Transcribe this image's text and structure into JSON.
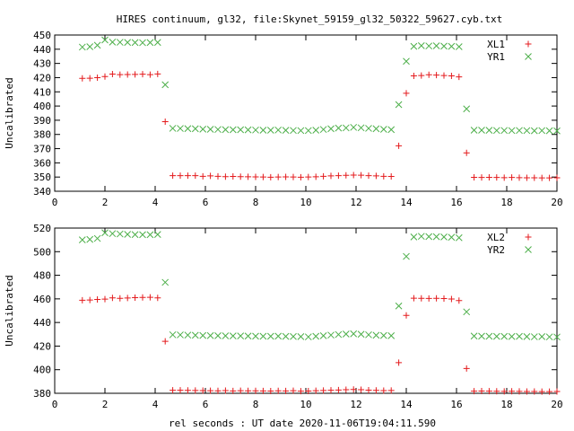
{
  "title": "HIRES continuum, gl32, file:Skynet_59159_gl32_50322_59627.cyb.txt",
  "xlabel": "rel seconds : UT date 2020-11-06T19:04:11.590",
  "chart_data": [
    {
      "type": "scatter",
      "ylabel": "Uncalibrated",
      "xlim": [
        0,
        20
      ],
      "ylim": [
        340,
        450
      ],
      "xticks": [
        0,
        2,
        4,
        6,
        8,
        10,
        12,
        14,
        16,
        18,
        20
      ],
      "yticks": [
        340,
        350,
        360,
        370,
        380,
        390,
        400,
        410,
        420,
        430,
        440,
        450
      ],
      "legend_position": "top-right",
      "series": [
        {
          "name": "XL1",
          "marker": "plus",
          "color": "#e41a1c",
          "points": [
            [
              1.1,
              419.5
            ],
            [
              1.4,
              419.6
            ],
            [
              1.7,
              420.0
            ],
            [
              2.0,
              420.8
            ],
            [
              2.3,
              422.5
            ],
            [
              2.6,
              422.1
            ],
            [
              2.9,
              422.2
            ],
            [
              3.2,
              422.3
            ],
            [
              3.5,
              422.4
            ],
            [
              3.8,
              422.1
            ],
            [
              4.1,
              422.6
            ],
            [
              4.4,
              389
            ],
            [
              4.7,
              351
            ],
            [
              5.0,
              351
            ],
            [
              5.3,
              351
            ],
            [
              5.6,
              351
            ],
            [
              5.9,
              350.5
            ],
            [
              6.2,
              350.8
            ],
            [
              6.5,
              350.5
            ],
            [
              6.8,
              350.3
            ],
            [
              7.1,
              350.4
            ],
            [
              7.4,
              350.3
            ],
            [
              7.7,
              350.2
            ],
            [
              8.0,
              350.1
            ],
            [
              8.3,
              350.0
            ],
            [
              8.6,
              349.9
            ],
            [
              8.9,
              350.0
            ],
            [
              9.2,
              350.1
            ],
            [
              9.5,
              350.0
            ],
            [
              9.8,
              349.9
            ],
            [
              10.1,
              350.0
            ],
            [
              10.4,
              350.2
            ],
            [
              10.7,
              350.5
            ],
            [
              11.0,
              350.8
            ],
            [
              11.3,
              351.0
            ],
            [
              11.6,
              351.2
            ],
            [
              11.9,
              351.4
            ],
            [
              12.2,
              351.3
            ],
            [
              12.5,
              351.0
            ],
            [
              12.8,
              350.8
            ],
            [
              13.1,
              350.5
            ],
            [
              13.4,
              350.4
            ],
            [
              13.7,
              372
            ],
            [
              14.0,
              409
            ],
            [
              14.3,
              421.2
            ],
            [
              14.6,
              421.5
            ],
            [
              14.9,
              422.0
            ],
            [
              15.2,
              421.8
            ],
            [
              15.5,
              421.5
            ],
            [
              15.8,
              421.2
            ],
            [
              16.1,
              420.5
            ],
            [
              16.4,
              367
            ],
            [
              16.7,
              349.8
            ],
            [
              17.0,
              349.7
            ],
            [
              17.3,
              349.8
            ],
            [
              17.6,
              349.7
            ],
            [
              17.9,
              349.6
            ],
            [
              18.2,
              349.7
            ],
            [
              18.5,
              349.6
            ],
            [
              18.8,
              349.5
            ],
            [
              19.1,
              349.5
            ],
            [
              19.4,
              349.4
            ],
            [
              19.7,
              349.4
            ],
            [
              20.0,
              349.5
            ]
          ]
        },
        {
          "name": "YR1",
          "marker": "cross",
          "color": "#4daf4a",
          "points": [
            [
              1.1,
              441.5
            ],
            [
              1.4,
              441.8
            ],
            [
              1.7,
              442.8
            ],
            [
              2.0,
              446.5
            ],
            [
              2.3,
              445.0
            ],
            [
              2.6,
              444.9
            ],
            [
              2.9,
              444.8
            ],
            [
              3.2,
              444.7
            ],
            [
              3.5,
              444.6
            ],
            [
              3.8,
              444.7
            ],
            [
              4.1,
              444.8
            ],
            [
              4.4,
              415
            ],
            [
              4.7,
              384.3
            ],
            [
              5.0,
              384.2
            ],
            [
              5.3,
              384.1
            ],
            [
              5.6,
              384.0
            ],
            [
              5.9,
              383.7
            ],
            [
              6.2,
              383.6
            ],
            [
              6.5,
              383.5
            ],
            [
              6.8,
              383.4
            ],
            [
              7.1,
              383.3
            ],
            [
              7.4,
              383.3
            ],
            [
              7.7,
              383.2
            ],
            [
              8.0,
              383.1
            ],
            [
              8.3,
              383.0
            ],
            [
              8.6,
              383.0
            ],
            [
              8.9,
              383.1
            ],
            [
              9.2,
              382.9
            ],
            [
              9.5,
              382.8
            ],
            [
              9.8,
              382.7
            ],
            [
              10.1,
              382.7
            ],
            [
              10.4,
              383.0
            ],
            [
              10.7,
              383.5
            ],
            [
              11.0,
              384.0
            ],
            [
              11.3,
              384.5
            ],
            [
              11.6,
              384.6
            ],
            [
              11.9,
              385.0
            ],
            [
              12.2,
              384.7
            ],
            [
              12.5,
              384.3
            ],
            [
              12.8,
              384.0
            ],
            [
              13.1,
              383.6
            ],
            [
              13.4,
              383.4
            ],
            [
              13.7,
              401
            ],
            [
              14.0,
              431.5
            ],
            [
              14.3,
              442.0
            ],
            [
              14.6,
              442.5
            ],
            [
              14.9,
              442.3
            ],
            [
              15.2,
              442.4
            ],
            [
              15.5,
              442.2
            ],
            [
              15.8,
              442.0
            ],
            [
              16.1,
              441.8
            ],
            [
              16.4,
              398
            ],
            [
              16.7,
              383.0
            ],
            [
              17.0,
              383.0
            ],
            [
              17.3,
              382.9
            ],
            [
              17.6,
              382.8
            ],
            [
              17.9,
              382.8
            ],
            [
              18.2,
              382.7
            ],
            [
              18.5,
              382.8
            ],
            [
              18.8,
              382.7
            ],
            [
              19.1,
              382.6
            ],
            [
              19.4,
              382.7
            ],
            [
              19.7,
              382.6
            ],
            [
              20.0,
              382.5
            ]
          ]
        }
      ]
    },
    {
      "type": "scatter",
      "ylabel": "Uncalibrated",
      "xlim": [
        0,
        20
      ],
      "ylim": [
        380,
        520
      ],
      "xticks": [
        0,
        2,
        4,
        6,
        8,
        10,
        12,
        14,
        16,
        18,
        20
      ],
      "yticks": [
        380,
        400,
        420,
        440,
        460,
        480,
        500,
        520
      ],
      "legend_position": "top-right",
      "series": [
        {
          "name": "XL2",
          "marker": "plus",
          "color": "#e41a1c",
          "points": [
            [
              1.1,
              458.8
            ],
            [
              1.4,
              459.0
            ],
            [
              1.7,
              459.5
            ],
            [
              2.0,
              459.8
            ],
            [
              2.3,
              460.8
            ],
            [
              2.6,
              460.5
            ],
            [
              2.9,
              460.7
            ],
            [
              3.2,
              461.0
            ],
            [
              3.5,
              461.2
            ],
            [
              3.8,
              461.3
            ],
            [
              4.1,
              460.8
            ],
            [
              4.4,
              424
            ],
            [
              4.7,
              382.6
            ],
            [
              5.0,
              382.6
            ],
            [
              5.3,
              382.5
            ],
            [
              5.6,
              382.4
            ],
            [
              5.9,
              382.3
            ],
            [
              6.2,
              382.2
            ],
            [
              6.5,
              382.1
            ],
            [
              6.8,
              382.3
            ],
            [
              7.1,
              382.0
            ],
            [
              7.4,
              382.2
            ],
            [
              7.7,
              382.1
            ],
            [
              8.0,
              382.1
            ],
            [
              8.3,
              382.0
            ],
            [
              8.6,
              381.9
            ],
            [
              8.9,
              382.1
            ],
            [
              9.2,
              382.0
            ],
            [
              9.5,
              382.2
            ],
            [
              9.8,
              381.8
            ],
            [
              10.1,
              381.9
            ],
            [
              10.4,
              382.2
            ],
            [
              10.7,
              382.4
            ],
            [
              11.0,
              382.6
            ],
            [
              11.3,
              382.8
            ],
            [
              11.6,
              383.0
            ],
            [
              11.9,
              383.2
            ],
            [
              12.2,
              383.0
            ],
            [
              12.5,
              382.7
            ],
            [
              12.8,
              382.5
            ],
            [
              13.1,
              382.3
            ],
            [
              13.4,
              382.4
            ],
            [
              13.7,
              406
            ],
            [
              14.0,
              446
            ],
            [
              14.3,
              460.6
            ],
            [
              14.6,
              460.5
            ],
            [
              14.9,
              460.4
            ],
            [
              15.2,
              460.5
            ],
            [
              15.5,
              460.3
            ],
            [
              15.8,
              459.9
            ],
            [
              16.1,
              458.6
            ],
            [
              16.4,
              401
            ],
            [
              16.7,
              381.8
            ],
            [
              17.0,
              381.9
            ],
            [
              17.3,
              381.8
            ],
            [
              17.6,
              381.7
            ],
            [
              17.9,
              381.6
            ],
            [
              18.2,
              381.7
            ],
            [
              18.5,
              381.6
            ],
            [
              18.8,
              381.5
            ],
            [
              19.1,
              381.5
            ],
            [
              19.4,
              381.4
            ],
            [
              19.7,
              381.4
            ],
            [
              20.0,
              381.5
            ]
          ]
        },
        {
          "name": "YR2",
          "marker": "cross",
          "color": "#4daf4a",
          "points": [
            [
              1.1,
              510.0
            ],
            [
              1.4,
              510.4
            ],
            [
              1.7,
              511.2
            ],
            [
              2.0,
              516.0
            ],
            [
              2.3,
              515.3
            ],
            [
              2.6,
              515.0
            ],
            [
              2.9,
              514.7
            ],
            [
              3.2,
              514.5
            ],
            [
              3.5,
              514.4
            ],
            [
              3.8,
              514.4
            ],
            [
              4.1,
              514.6
            ],
            [
              4.4,
              474
            ],
            [
              4.7,
              429.6
            ],
            [
              5.0,
              429.5
            ],
            [
              5.3,
              429.3
            ],
            [
              5.6,
              429.2
            ],
            [
              5.9,
              429.0
            ],
            [
              6.2,
              428.9
            ],
            [
              6.5,
              428.8
            ],
            [
              6.8,
              428.7
            ],
            [
              7.1,
              428.6
            ],
            [
              7.4,
              428.6
            ],
            [
              7.7,
              428.5
            ],
            [
              8.0,
              428.4
            ],
            [
              8.3,
              428.3
            ],
            [
              8.6,
              428.3
            ],
            [
              8.9,
              428.4
            ],
            [
              9.2,
              428.2
            ],
            [
              9.5,
              428.1
            ],
            [
              9.8,
              428.0
            ],
            [
              10.1,
              427.8
            ],
            [
              10.4,
              428.3
            ],
            [
              10.7,
              428.8
            ],
            [
              11.0,
              429.3
            ],
            [
              11.3,
              429.8
            ],
            [
              11.6,
              430.2
            ],
            [
              11.9,
              430.4
            ],
            [
              12.2,
              430.0
            ],
            [
              12.5,
              429.6
            ],
            [
              12.8,
              429.2
            ],
            [
              13.1,
              429.0
            ],
            [
              13.4,
              428.8
            ],
            [
              13.7,
              454
            ],
            [
              14.0,
              496
            ],
            [
              14.3,
              512.5
            ],
            [
              14.6,
              513.0
            ],
            [
              14.9,
              512.8
            ],
            [
              15.2,
              512.7
            ],
            [
              15.5,
              512.5
            ],
            [
              15.8,
              512.2
            ],
            [
              16.1,
              511.8
            ],
            [
              16.4,
              449
            ],
            [
              16.7,
              428.5
            ],
            [
              17.0,
              428.4
            ],
            [
              17.3,
              428.3
            ],
            [
              17.6,
              428.2
            ],
            [
              17.9,
              428.2
            ],
            [
              18.2,
              428.1
            ],
            [
              18.5,
              428.2
            ],
            [
              18.8,
              428.0
            ],
            [
              19.1,
              427.9
            ],
            [
              19.4,
              428.0
            ],
            [
              19.7,
              427.8
            ],
            [
              20.0,
              427.7
            ]
          ]
        }
      ]
    }
  ]
}
